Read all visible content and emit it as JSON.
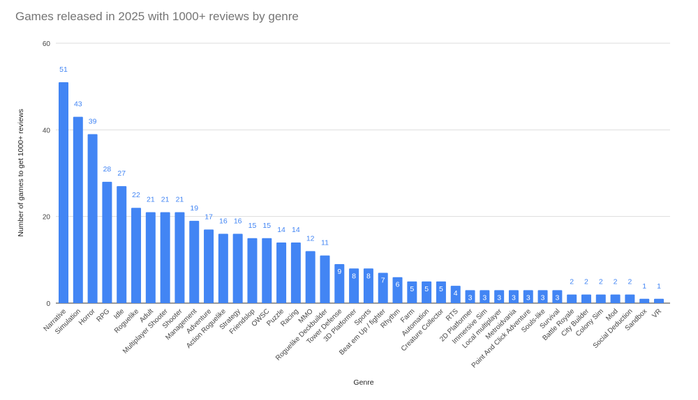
{
  "chart_data": {
    "type": "bar",
    "title": "Games released in 2025 with 1000+ reviews  by genre",
    "xlabel": "Genre",
    "ylabel": "Number of games to get 1000+ reviews",
    "ylim": [
      0,
      60
    ],
    "yticks": [
      0,
      20,
      40,
      60
    ],
    "grid": true,
    "legend": "none",
    "bar_color": "#4285f4",
    "label_color": "#4285f4",
    "categories": [
      "Narrative",
      "Simulation",
      "Horror",
      "RPG",
      "Idle",
      "Roguelike",
      "Adult",
      "Multiplayer Shooter",
      "Shooter",
      "Management",
      "Adventure",
      "Action Roguelike",
      "Strategy",
      "Friendslop",
      "OWSC",
      "Puzzle",
      "Racing",
      "MMO",
      "Roguelike Deckbuilder",
      "Tower Defense",
      "3D Platformer",
      "Sports",
      "Beat em Up / fighter",
      "Rhythm",
      "Farm",
      "Automation",
      "Creature Collector",
      "RTS",
      "2D Platformer",
      "Immersive Sim",
      "Local multiplayer",
      "Metroidvania",
      "Point And Click Adventure",
      "Souls-like",
      "Survival",
      "Battle Royale",
      "City Builder",
      "Colony Sim",
      "Mod",
      "Social Deduction",
      "Sandbox",
      "VR"
    ],
    "values": [
      51,
      43,
      39,
      28,
      27,
      22,
      21,
      21,
      21,
      19,
      17,
      16,
      16,
      15,
      15,
      14,
      14,
      12,
      11,
      9,
      8,
      8,
      7,
      6,
      5,
      5,
      5,
      4,
      3,
      3,
      3,
      3,
      3,
      3,
      3,
      2,
      2,
      2,
      2,
      2,
      1,
      1
    ]
  }
}
